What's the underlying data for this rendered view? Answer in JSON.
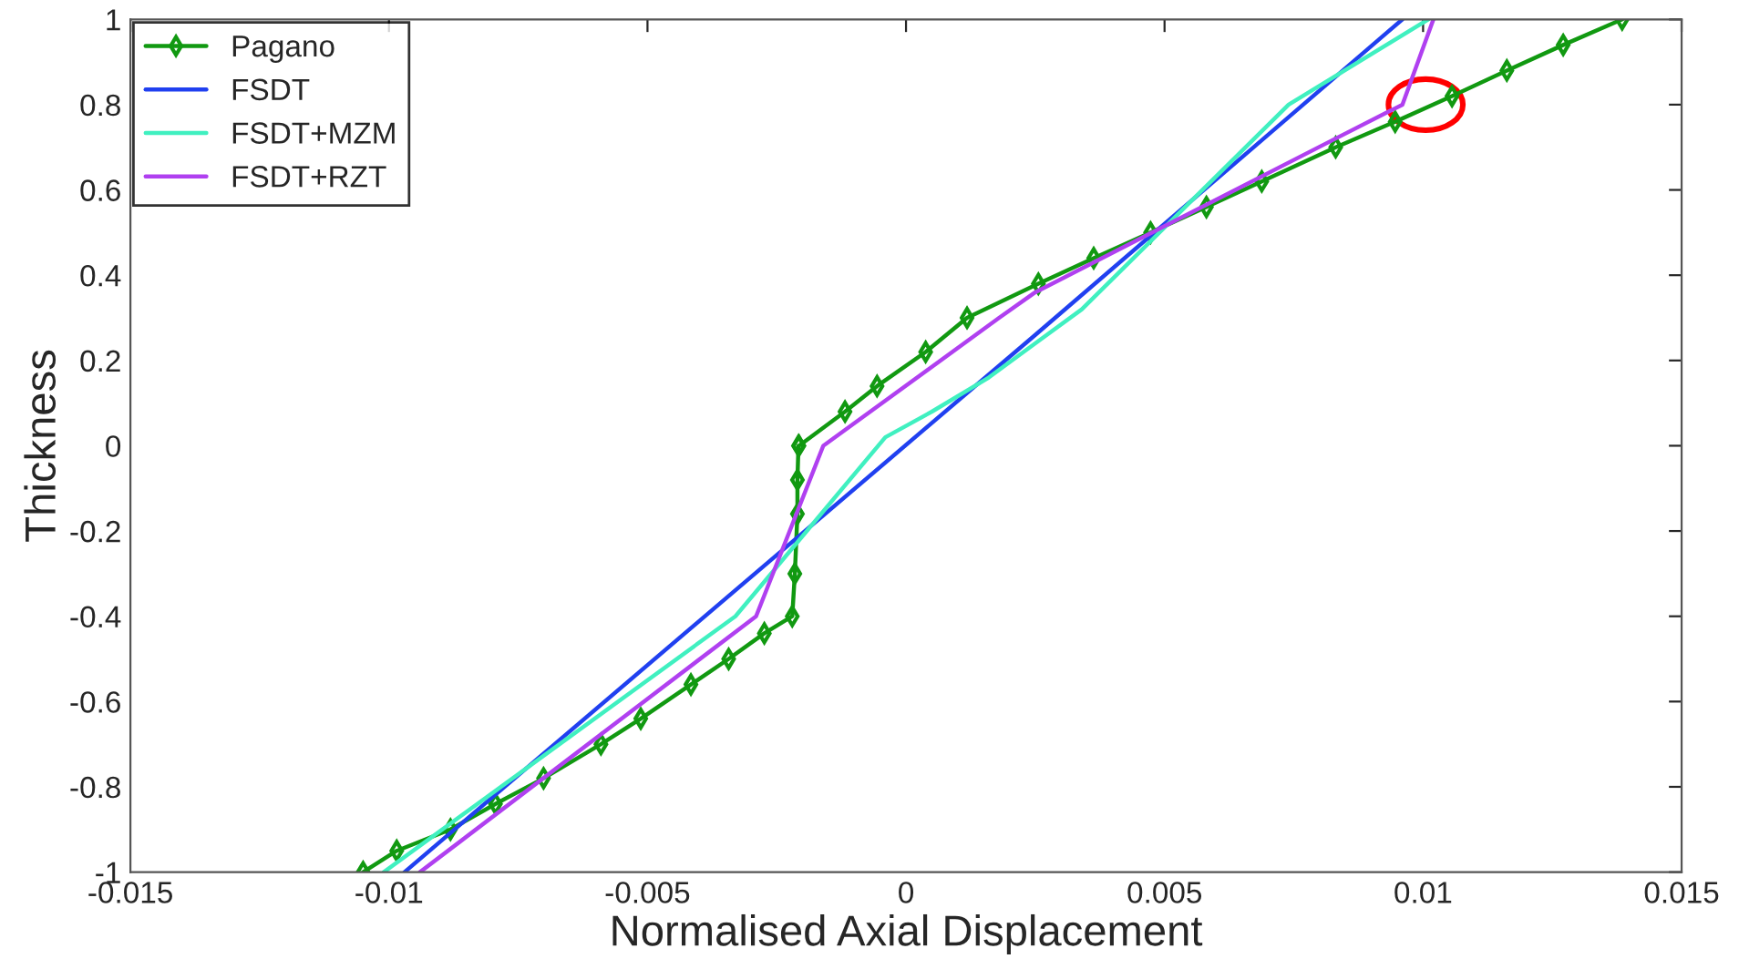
{
  "chart_data": {
    "type": "line",
    "xlabel": "Normalised Axial Displacement",
    "ylabel": "Thickness",
    "xlim": [
      -0.015,
      0.015
    ],
    "ylim": [
      -1,
      1
    ],
    "xticks": [
      {
        "value": -0.015,
        "label": "-0.015"
      },
      {
        "value": -0.01,
        "label": "-0.01"
      },
      {
        "value": -0.005,
        "label": "-0.005"
      },
      {
        "value": 0,
        "label": "0"
      },
      {
        "value": 0.005,
        "label": "0.005"
      },
      {
        "value": 0.01,
        "label": "0.01"
      },
      {
        "value": 0.015,
        "label": "0.015"
      }
    ],
    "yticks": [
      {
        "value": -1,
        "label": "-1"
      },
      {
        "value": -0.8,
        "label": "-0.8"
      },
      {
        "value": -0.6,
        "label": "-0.6"
      },
      {
        "value": -0.4,
        "label": "-0.4"
      },
      {
        "value": -0.2,
        "label": "-0.2"
      },
      {
        "value": 0,
        "label": "0"
      },
      {
        "value": 0.2,
        "label": "0.2"
      },
      {
        "value": 0.4,
        "label": "0.4"
      },
      {
        "value": 0.6,
        "label": "0.6"
      },
      {
        "value": 0.8,
        "label": "0.8"
      },
      {
        "value": 1,
        "label": "1"
      }
    ],
    "grid": false,
    "legend": "top left",
    "line_style": "solid",
    "series": [
      {
        "name": "Pagano",
        "color": "#119911",
        "marker": "diamond",
        "x": [
          -0.0105,
          -0.00985,
          -0.00881,
          -0.00794,
          -0.00701,
          -0.0059,
          -0.00513,
          -0.00416,
          -0.00343,
          -0.00274,
          -0.0022,
          -0.00215,
          -0.0021,
          -0.0021,
          -0.00208,
          -0.00207,
          -0.00118,
          -0.00056,
          0.00038,
          0.00118,
          0.00256,
          0.00363,
          0.00473,
          0.00581,
          0.00688,
          0.00831,
          0.00946,
          0.01056,
          0.01162,
          0.01271,
          0.01385
        ],
        "values": [
          -1,
          -0.95,
          -0.9,
          -0.84,
          -0.78,
          -0.7,
          -0.64,
          -0.56,
          -0.5,
          -0.44,
          -0.4,
          -0.3,
          -0.16,
          -0.08,
          0,
          0,
          0.08,
          0.14,
          0.22,
          0.3,
          0.38,
          0.44,
          0.5,
          0.56,
          0.62,
          0.7,
          0.76,
          0.82,
          0.88,
          0.94,
          1
        ]
      },
      {
        "name": "FSDT",
        "color": "#2040f0",
        "marker": "none",
        "x": [
          -0.0097,
          0.0025,
          0.0096
        ],
        "values": [
          -1,
          0.26,
          1
        ]
      },
      {
        "name": "FSDT+MZM",
        "color": "#40f0c0",
        "marker": "none",
        "x": [
          -0.0101,
          -0.0033,
          -0.0004,
          0.0005,
          0.0016,
          0.0025,
          0.0034,
          0.0074,
          0.0101
        ],
        "values": [
          -1,
          -0.4,
          0.02,
          0.08,
          0.16,
          0.24,
          0.32,
          0.8,
          1
        ]
      },
      {
        "name": "FSDT+RZT",
        "color": "#b040f0",
        "marker": "none",
        "x": [
          -0.0094,
          -0.0029,
          -0.0016,
          0.0018,
          0.0025,
          0.0083,
          0.0096,
          0.0102
        ],
        "values": [
          -1,
          -0.4,
          0,
          0.3,
          0.36,
          0.72,
          0.8,
          1
        ]
      }
    ]
  }
}
